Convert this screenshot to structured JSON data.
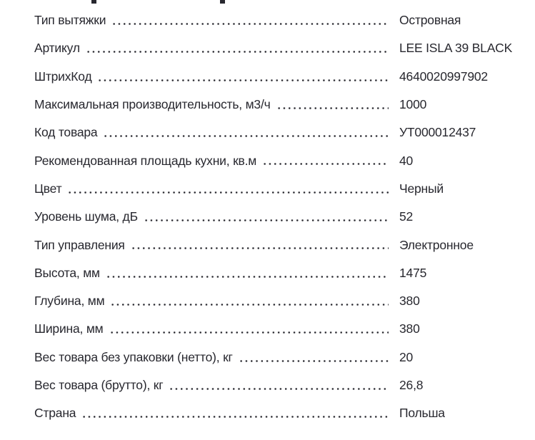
{
  "theme": {
    "background": "#ffffff",
    "text_color": "#28282f"
  },
  "spec_table": {
    "rows": [
      {
        "label": "Тип вытяжки",
        "value": "Островная"
      },
      {
        "label": "Артикул",
        "value": "LEE ISLA 39 BLACK"
      },
      {
        "label": "ШтрихКод",
        "value": "4640020997902"
      },
      {
        "label": "Максимальная производительность, м3/ч",
        "value": "1000"
      },
      {
        "label": "Код товара",
        "value": "УТ000012437"
      },
      {
        "label": "Рекомендованная площадь кухни, кв.м",
        "value": "40"
      },
      {
        "label": "Цвет",
        "value": "Черный"
      },
      {
        "label": "Уровень шума, дБ",
        "value": "52"
      },
      {
        "label": "Тип управления",
        "value": "Электронное"
      },
      {
        "label": "Высота, мм",
        "value": "1475"
      },
      {
        "label": "Глубина, мм",
        "value": "380"
      },
      {
        "label": "Ширина, мм",
        "value": "380"
      },
      {
        "label": "Вес товара без упаковки (нетто), кг",
        "value": "20"
      },
      {
        "label": "Вес товара (брутто), кг",
        "value": "26,8"
      },
      {
        "label": "Страна",
        "value": "Польша"
      }
    ]
  }
}
